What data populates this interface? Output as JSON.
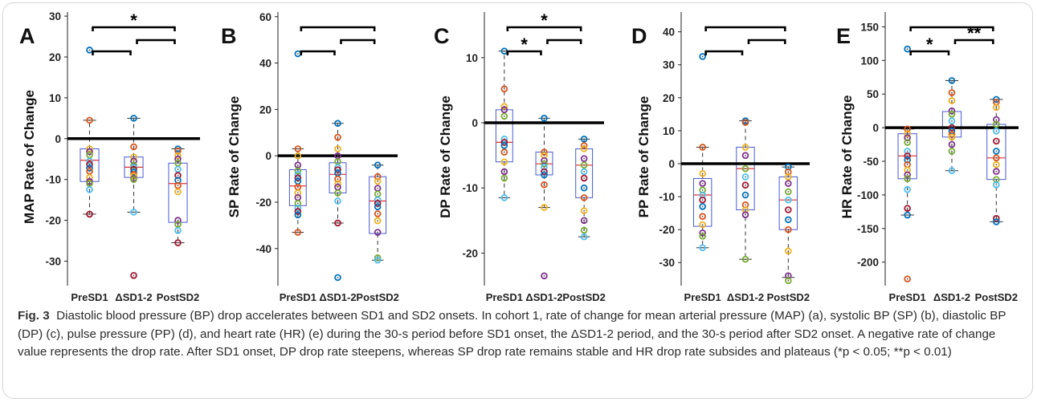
{
  "figure": {
    "caption_label": "Fig. 3",
    "caption_title": "Diastolic blood pressure (BP) drop accelerates between SD1 and SD2 onsets.",
    "caption_body": "In cohort 1, rate of change for mean arterial pressure (MAP) (a), systolic BP (SP) (b), diastolic BP (DP) (c), pulse pressure (PP) (d), and heart rate (HR) (e) during the 30-s period before SD1 onset, the ΔSD1-2 period, and the 30-s period after SD2 onset. A negative rate of change value represents the drop rate. After SD1 onset, DP drop rate steepens, whereas SP drop rate remains stable and HR drop rate subsides and plateaus (*p < 0.05; **p < 0.01)"
  },
  "dot_colors": [
    "#0072bd",
    "#d95319",
    "#edb120",
    "#7e2f8e",
    "#77ac30",
    "#4dbeee",
    "#a2142f"
  ],
  "chart_data": [
    {
      "type": "box",
      "panel": "A",
      "ylabel": "MAP Rate of Change",
      "categories": [
        "PreSD1",
        "ΔSD1-2",
        "PostSD2"
      ],
      "ylim": [
        -36,
        31
      ],
      "yticks": [
        -30,
        -20,
        -10,
        0,
        10,
        20,
        30
      ],
      "zero_line": 0,
      "boxes": [
        {
          "q1": -10.5,
          "median": -5.3,
          "q3": -2.5,
          "whisker_low": -18.5,
          "whisker_high": 4.5
        },
        {
          "q1": -9.5,
          "median": -7.0,
          "q3": -4.5,
          "whisker_low": -18,
          "whisker_high": 5
        },
        {
          "q1": -20.5,
          "median": -11.0,
          "q3": -6.0,
          "whisker_low": -25.5,
          "whisker_high": -2.5
        }
      ],
      "points": [
        [
          21.7,
          4.5,
          -2.5,
          -3.2,
          -4.0,
          -5.5,
          -6.3,
          -7.2,
          -8.0,
          -9.5,
          -10.5,
          -11.0,
          -12.5,
          -18.5
        ],
        [
          5.0,
          -2.0,
          -4.5,
          -5.5,
          -6.5,
          -7.0,
          -7.5,
          -8.2,
          -8.8,
          -9.2,
          -9.8,
          -10.0,
          -18.0,
          -33.5
        ],
        [
          -2.5,
          -3.0,
          -4.2,
          -5.0,
          -6.0,
          -7.5,
          -9.0,
          -10.2,
          -11.5,
          -13.0,
          -20.0,
          -21.0,
          -22.5,
          -25.5
        ]
      ],
      "significance": [
        {
          "from": 0,
          "to": 2,
          "label": "*"
        },
        {
          "from": 0,
          "to": 1,
          "label": ""
        },
        {
          "from": 1,
          "to": 2,
          "label": ""
        }
      ]
    },
    {
      "type": "box",
      "panel": "B",
      "ylabel": "SP Rate of Change",
      "categories": [
        "PreSD1",
        "ΔSD1-2",
        "PostSD2"
      ],
      "ylim": [
        -56,
        62
      ],
      "yticks": [
        -40,
        -20,
        0,
        20,
        40,
        60
      ],
      "zero_line": 0,
      "boxes": [
        {
          "q1": -21.5,
          "median": -13.0,
          "q3": -6.0,
          "whisker_low": -33.0,
          "whisker_high": 3.0
        },
        {
          "q1": -16.0,
          "median": -8.0,
          "q3": -3.0,
          "whisker_low": -29.0,
          "whisker_high": 14.0
        },
        {
          "q1": -33.5,
          "median": -19.5,
          "q3": -9.0,
          "whisker_low": -45.0,
          "whisker_high": -4.0
        }
      ],
      "points": [
        [
          44.0,
          3.0,
          0.0,
          -4.0,
          -6.5,
          -8.0,
          -9.5,
          -11.0,
          -13.5,
          -16.0,
          -18.0,
          -20.5,
          -22.5,
          -24.0,
          -25.5,
          -33.0
        ],
        [
          14.0,
          8.0,
          3.0,
          0.0,
          -2.5,
          -5.0,
          -6.0,
          -7.5,
          -10.0,
          -12.0,
          -13.5,
          -16.0,
          -19.5,
          -29.0,
          -52.5
        ],
        [
          -4.0,
          -9.0,
          -11.0,
          -14.0,
          -16.5,
          -19.0,
          -20.5,
          -22.0,
          -25.0,
          -28.0,
          -33.0,
          -44.0,
          -45.0
        ]
      ],
      "significance": [
        {
          "from": 0,
          "to": 2,
          "label": ""
        },
        {
          "from": 0,
          "to": 1,
          "label": ""
        },
        {
          "from": 1,
          "to": 2,
          "label": ""
        }
      ]
    },
    {
      "type": "box",
      "panel": "C",
      "ylabel": "DP Rate of Change",
      "categories": [
        "PreSD1",
        "ΔSD1-2",
        "PostSD2"
      ],
      "ylim": [
        -25,
        17
      ],
      "yticks": [
        -20,
        -10,
        0,
        10
      ],
      "zero_line": 0,
      "boxes": [
        {
          "q1": -6.0,
          "median": -3.0,
          "q3": 2.0,
          "whisker_low": -11.5,
          "whisker_high": 11.0
        },
        {
          "q1": -8.0,
          "median": -6.3,
          "q3": -4.5,
          "whisker_low": -13.0,
          "whisker_high": 0.7
        },
        {
          "q1": -11.5,
          "median": -6.5,
          "q3": -4.0,
          "whisker_low": -17.5,
          "whisker_high": -2.5
        }
      ],
      "points": [
        [
          11.0,
          5.2,
          2.5,
          2.0,
          1.0,
          -2.5,
          -3.0,
          -3.5,
          -4.5,
          -6.0,
          -7.5,
          -8.5,
          -11.5
        ],
        [
          0.7,
          -4.5,
          -5.0,
          -5.8,
          -6.3,
          -6.8,
          -7.5,
          -8.0,
          -9.5,
          -13.0,
          -23.5
        ],
        [
          -2.5,
          -3.5,
          -4.0,
          -5.5,
          -6.5,
          -7.5,
          -8.5,
          -10.0,
          -11.5,
          -13.5,
          -15.0,
          -16.5,
          -17.5
        ]
      ],
      "significance": [
        {
          "from": 0,
          "to": 2,
          "label": "*"
        },
        {
          "from": 0,
          "to": 1,
          "label": "*"
        },
        {
          "from": 1,
          "to": 2,
          "label": ""
        }
      ]
    },
    {
      "type": "box",
      "panel": "D",
      "ylabel": "PP Rate of Change",
      "categories": [
        "PreSD1",
        "ΔSD1-2",
        "PostSD2"
      ],
      "ylim": [
        -37,
        46
      ],
      "yticks": [
        -30,
        -20,
        -10,
        0,
        10,
        20,
        30,
        40
      ],
      "zero_line": 0,
      "boxes": [
        {
          "q1": -19.0,
          "median": -9.5,
          "q3": -4.5,
          "whisker_low": -25.5,
          "whisker_high": 5.0
        },
        {
          "q1": -14.0,
          "median": -1.5,
          "q3": 5.0,
          "whisker_low": -29.0,
          "whisker_high": 13.0
        },
        {
          "q1": -20.0,
          "median": -11.0,
          "q3": -4.0,
          "whisker_low": -34.5,
          "whisker_high": -1.0
        }
      ],
      "points": [
        [
          32.5,
          5.0,
          -3.0,
          -6.0,
          -8.0,
          -9.5,
          -11.0,
          -13.0,
          -16.0,
          -18.5,
          -21.0,
          -22.0,
          -25.5
        ],
        [
          13.0,
          12.5,
          5.0,
          2.5,
          -1.5,
          -4.0,
          -6.5,
          -9.5,
          -12.5,
          -14.0,
          -15.5,
          -29.0
        ],
        [
          -1.0,
          -2.5,
          -4.0,
          -6.0,
          -8.5,
          -11.0,
          -14.0,
          -17.0,
          -20.0,
          -26.5,
          -34.0,
          -35.5
        ]
      ],
      "significance": [
        {
          "from": 0,
          "to": 2,
          "label": ""
        },
        {
          "from": 0,
          "to": 1,
          "label": ""
        },
        {
          "from": 1,
          "to": 2,
          "label": ""
        }
      ]
    },
    {
      "type": "box",
      "panel": "E",
      "ylabel": "HR Rate of Change",
      "categories": [
        "PreSD1",
        "ΔSD1-2",
        "PostSD2"
      ],
      "ylim": [
        -235,
        172
      ],
      "yticks": [
        -200,
        -150,
        -100,
        -50,
        0,
        50,
        100,
        150
      ],
      "zero_line": 0,
      "boxes": [
        {
          "q1": -76.0,
          "median": -42.0,
          "q3": -9.0,
          "whisker_low": -130.0,
          "whisker_high": -2.0
        },
        {
          "q1": -14.0,
          "median": 0.0,
          "q3": 24.0,
          "whisker_low": -64.0,
          "whisker_high": 70.0
        },
        {
          "q1": -77.0,
          "median": -45.0,
          "q3": 5.0,
          "whisker_low": -140.0,
          "whisker_high": 42.0
        }
      ],
      "points": [
        [
          117.0,
          -2.0,
          -9.0,
          -15.0,
          -22.0,
          -35.0,
          -42.0,
          -48.0,
          -55.0,
          -63.0,
          -70.0,
          -76.0,
          -92.0,
          -120.0,
          -130.0,
          -225.0
        ],
        [
          70.0,
          52.0,
          40.0,
          25.0,
          20.0,
          10.0,
          0.0,
          -5.0,
          -10.0,
          -14.0,
          -25.0,
          -35.0,
          -64.0
        ],
        [
          42.0,
          38.0,
          30.0,
          12.0,
          5.0,
          -5.0,
          -20.0,
          -35.0,
          -45.0,
          -55.0,
          -65.0,
          -77.0,
          -85.0,
          -135.0,
          -140.0
        ]
      ],
      "significance": [
        {
          "from": 0,
          "to": 2,
          "label": ""
        },
        {
          "from": 0,
          "to": 1,
          "label": "*"
        },
        {
          "from": 1,
          "to": 2,
          "label": "**"
        }
      ]
    }
  ]
}
